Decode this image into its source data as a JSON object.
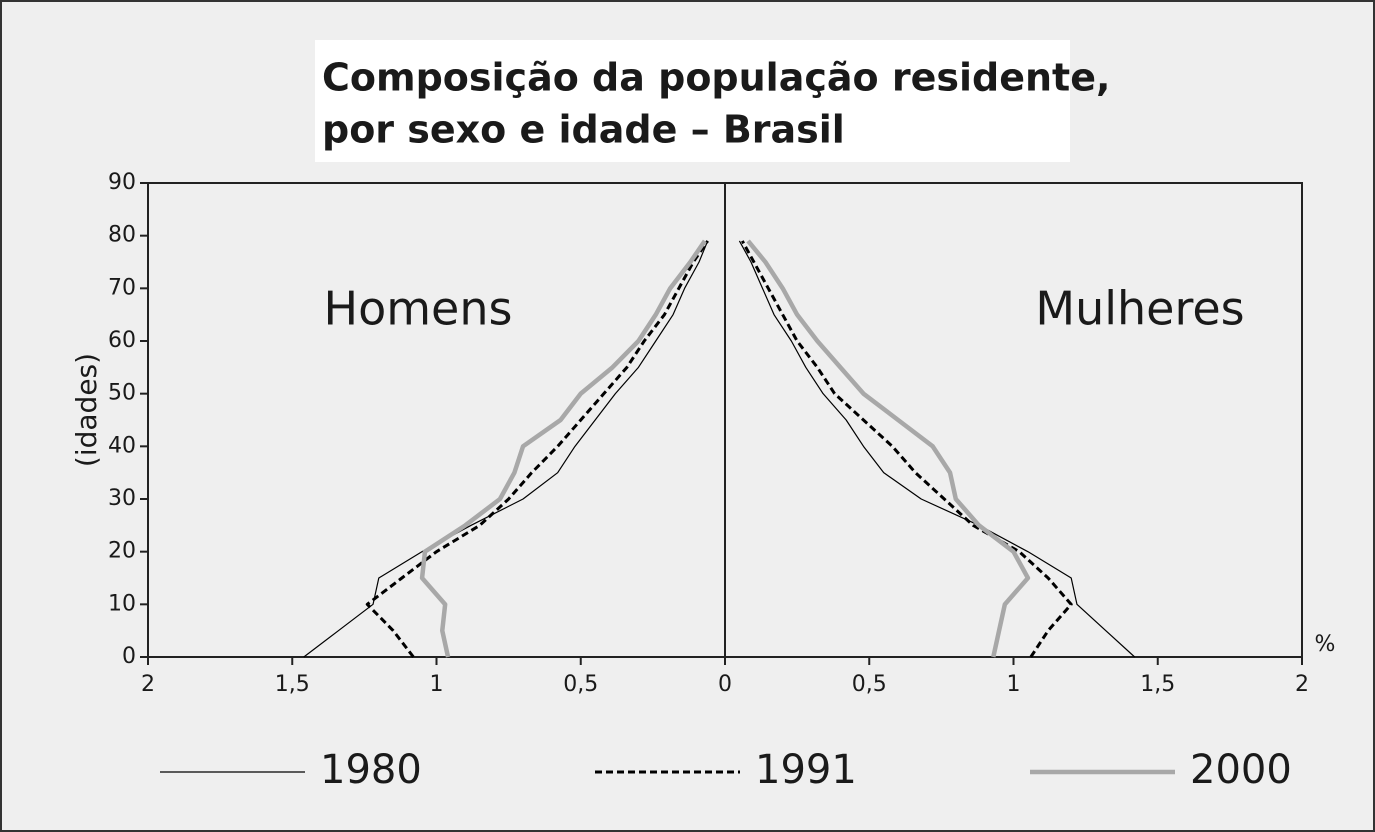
{
  "chart_data": {
    "type": "line",
    "title": [
      "Composição da população residente,",
      "por sexo e idade – Brasil"
    ],
    "ylabel": "(idades)",
    "xunit": "%",
    "annotations": [
      "Homens",
      "Mulheres"
    ],
    "ages": [
      0,
      5,
      10,
      15,
      20,
      25,
      30,
      35,
      40,
      45,
      50,
      55,
      60,
      65,
      70,
      75,
      79
    ],
    "series": [
      {
        "name": "1980",
        "color": "#000000",
        "dash": false,
        "men": [
          -1.46,
          -1.34,
          -1.22,
          -1.2,
          -1.05,
          -0.88,
          -0.7,
          -0.58,
          -0.52,
          -0.45,
          -0.38,
          -0.3,
          -0.24,
          -0.18,
          -0.14,
          -0.09,
          -0.06
        ],
        "women": [
          1.42,
          1.32,
          1.22,
          1.2,
          1.05,
          0.88,
          0.68,
          0.55,
          0.48,
          0.42,
          0.34,
          0.28,
          0.23,
          0.17,
          0.13,
          0.09,
          0.05
        ]
      },
      {
        "name": "1991",
        "color": "#000000",
        "dash": true,
        "men": [
          -1.08,
          -1.15,
          -1.24,
          -1.12,
          -1.0,
          -0.85,
          -0.75,
          -0.67,
          -0.58,
          -0.5,
          -0.42,
          -0.34,
          -0.28,
          -0.21,
          -0.16,
          -0.11,
          -0.06
        ],
        "women": [
          1.06,
          1.12,
          1.2,
          1.12,
          1.02,
          0.86,
          0.76,
          0.66,
          0.58,
          0.48,
          0.38,
          0.32,
          0.25,
          0.2,
          0.15,
          0.1,
          0.06
        ]
      },
      {
        "name": "2000",
        "color": "#a8a8a8",
        "dash": false,
        "men": [
          -0.96,
          -0.98,
          -0.97,
          -1.05,
          -1.04,
          -0.9,
          -0.78,
          -0.73,
          -0.7,
          -0.57,
          -0.5,
          -0.39,
          -0.3,
          -0.24,
          -0.19,
          -0.12,
          -0.07
        ],
        "women": [
          0.93,
          0.95,
          0.97,
          1.05,
          1.0,
          0.88,
          0.8,
          0.78,
          0.72,
          0.6,
          0.48,
          0.4,
          0.32,
          0.25,
          0.2,
          0.14,
          0.08
        ]
      }
    ],
    "xlim": [
      -2,
      2
    ],
    "xticks": [
      {
        "value": -2,
        "label": "2"
      },
      {
        "value": -1.5,
        "label": "1,5"
      },
      {
        "value": -1,
        "label": "1"
      },
      {
        "value": -0.5,
        "label": "0,5"
      },
      0,
      {
        "value": 0.5,
        "label": "0,5"
      },
      1,
      {
        "value": 1.5,
        "label": "1,5"
      },
      2
    ],
    "ylim": [
      0,
      90
    ],
    "yticks": [
      0,
      10,
      20,
      30,
      40,
      50,
      60,
      70,
      80,
      90
    ],
    "legend": "bottom"
  }
}
